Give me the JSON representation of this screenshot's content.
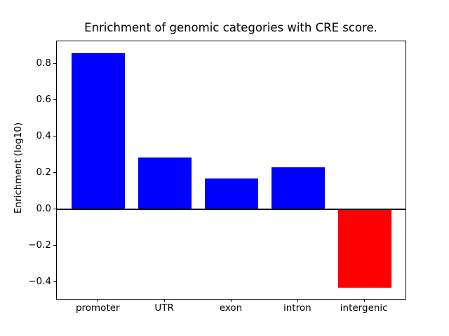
{
  "chart_data": {
    "type": "bar",
    "title": "Enrichment of genomic categories with CRE score.",
    "xlabel": "",
    "ylabel": "Enrichment (log10)",
    "categories": [
      "promoter",
      "UTR",
      "exon",
      "intron",
      "intergenic"
    ],
    "values": [
      0.86,
      0.285,
      0.17,
      0.23,
      -0.43
    ],
    "bar_colors": [
      "#0000ff",
      "#0000ff",
      "#0000ff",
      "#0000ff",
      "#ff0000"
    ],
    "positive_color": "#0000ff",
    "negative_color": "#ff0000",
    "yticks": [
      {
        "value": 0.8,
        "label": "0.8"
      },
      {
        "value": 0.6,
        "label": "0.6"
      },
      {
        "value": 0.4,
        "label": "0.4"
      },
      {
        "value": 0.2,
        "label": "0.2"
      },
      {
        "value": 0.0,
        "label": "0.0"
      },
      {
        "value": -0.2,
        "label": "−0.2"
      },
      {
        "value": -0.4,
        "label": "−0.4"
      }
    ],
    "ylim": [
      -0.497,
      0.924
    ],
    "xlim": [
      -0.625,
      4.625
    ],
    "bar_width": 0.8,
    "zero_line": true,
    "grid": false,
    "legend": null
  }
}
